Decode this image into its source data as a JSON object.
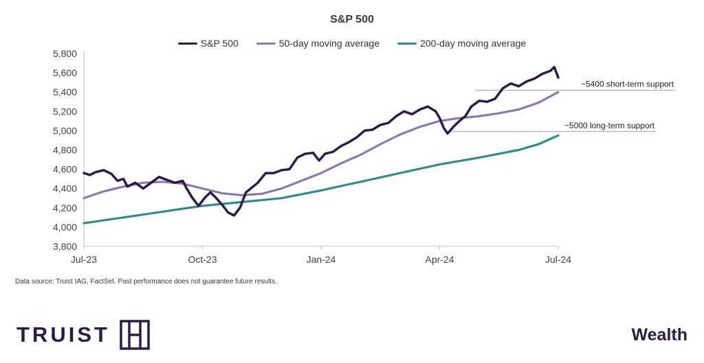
{
  "chart_data": {
    "type": "line",
    "title": "S&P 500",
    "y_ticks": [
      "5,800",
      "5,600",
      "5,400",
      "5,200",
      "5,000",
      "4,800",
      "4,600",
      "4,400",
      "4,200",
      "4,000",
      "3,800"
    ],
    "ylim": [
      3800,
      5800
    ],
    "x_ticks": [
      "Jul-23",
      "Oct-23",
      "Jan-24",
      "Apr-24",
      "Jul-24"
    ],
    "x_months": [
      0,
      3,
      6,
      9,
      12
    ],
    "xlim": [
      0,
      12
    ],
    "legend_position": "top-center",
    "series": [
      {
        "name": "S&P 500",
        "color": "#2e1a47",
        "points": [
          [
            0,
            4560
          ],
          [
            0.15,
            4540
          ],
          [
            0.3,
            4570
          ],
          [
            0.5,
            4590
          ],
          [
            0.7,
            4550
          ],
          [
            0.85,
            4480
          ],
          [
            1.0,
            4500
          ],
          [
            1.1,
            4420
          ],
          [
            1.3,
            4460
          ],
          [
            1.5,
            4400
          ],
          [
            1.7,
            4460
          ],
          [
            1.9,
            4520
          ],
          [
            2.1,
            4490
          ],
          [
            2.3,
            4460
          ],
          [
            2.5,
            4480
          ],
          [
            2.6,
            4400
          ],
          [
            2.75,
            4300
          ],
          [
            2.9,
            4220
          ],
          [
            3.05,
            4300
          ],
          [
            3.2,
            4360
          ],
          [
            3.35,
            4300
          ],
          [
            3.5,
            4230
          ],
          [
            3.65,
            4150
          ],
          [
            3.8,
            4120
          ],
          [
            3.95,
            4200
          ],
          [
            4.1,
            4360
          ],
          [
            4.25,
            4410
          ],
          [
            4.4,
            4460
          ],
          [
            4.6,
            4560
          ],
          [
            4.8,
            4560
          ],
          [
            5.0,
            4590
          ],
          [
            5.2,
            4600
          ],
          [
            5.4,
            4720
          ],
          [
            5.6,
            4760
          ],
          [
            5.8,
            4770
          ],
          [
            5.95,
            4690
          ],
          [
            6.1,
            4760
          ],
          [
            6.3,
            4780
          ],
          [
            6.5,
            4840
          ],
          [
            6.7,
            4880
          ],
          [
            6.9,
            4930
          ],
          [
            7.1,
            5000
          ],
          [
            7.3,
            5010
          ],
          [
            7.5,
            5060
          ],
          [
            7.7,
            5080
          ],
          [
            7.9,
            5150
          ],
          [
            8.1,
            5200
          ],
          [
            8.3,
            5170
          ],
          [
            8.5,
            5220
          ],
          [
            8.7,
            5250
          ],
          [
            8.9,
            5200
          ],
          [
            9.0,
            5130
          ],
          [
            9.1,
            5030
          ],
          [
            9.2,
            4970
          ],
          [
            9.35,
            5040
          ],
          [
            9.5,
            5100
          ],
          [
            9.65,
            5150
          ],
          [
            9.8,
            5250
          ],
          [
            10.0,
            5310
          ],
          [
            10.2,
            5300
          ],
          [
            10.4,
            5330
          ],
          [
            10.6,
            5440
          ],
          [
            10.8,
            5490
          ],
          [
            11.0,
            5460
          ],
          [
            11.2,
            5510
          ],
          [
            11.4,
            5540
          ],
          [
            11.6,
            5590
          ],
          [
            11.8,
            5620
          ],
          [
            11.9,
            5660
          ],
          [
            12.0,
            5550
          ]
        ]
      },
      {
        "name": "50-day moving average",
        "color": "#8b78ad",
        "points": [
          [
            0,
            4300
          ],
          [
            0.5,
            4370
          ],
          [
            1.0,
            4420
          ],
          [
            1.5,
            4460
          ],
          [
            2.0,
            4470
          ],
          [
            2.5,
            4450
          ],
          [
            3.0,
            4400
          ],
          [
            3.5,
            4350
          ],
          [
            4.0,
            4330
          ],
          [
            4.5,
            4345
          ],
          [
            5.0,
            4400
          ],
          [
            5.5,
            4480
          ],
          [
            6.0,
            4560
          ],
          [
            6.5,
            4660
          ],
          [
            7.0,
            4750
          ],
          [
            7.5,
            4860
          ],
          [
            8.0,
            4960
          ],
          [
            8.5,
            5040
          ],
          [
            9.0,
            5100
          ],
          [
            9.5,
            5130
          ],
          [
            10.0,
            5150
          ],
          [
            10.5,
            5180
          ],
          [
            11.0,
            5220
          ],
          [
            11.5,
            5290
          ],
          [
            12.0,
            5400
          ]
        ]
      },
      {
        "name": "200-day moving average",
        "color": "#2f8c8a",
        "points": [
          [
            0,
            4040
          ],
          [
            1.0,
            4100
          ],
          [
            2.0,
            4160
          ],
          [
            3.0,
            4220
          ],
          [
            4.0,
            4260
          ],
          [
            5.0,
            4300
          ],
          [
            6.0,
            4380
          ],
          [
            7.0,
            4470
          ],
          [
            8.0,
            4560
          ],
          [
            9.0,
            4650
          ],
          [
            10.0,
            4720
          ],
          [
            11.0,
            4800
          ],
          [
            11.5,
            4860
          ],
          [
            12.0,
            4950
          ]
        ]
      }
    ],
    "annotations": [
      {
        "text": "~5400 short-term support",
        "y": 5420,
        "x_start": 9.9
      },
      {
        "text": "~5000 long-term support",
        "y": 4990,
        "x_start": 9.2
      }
    ]
  },
  "footer": {
    "source": "Data source: Truist IAG, FactSet. Past performance does not guarantee future results.",
    "brand": "TRUIST",
    "wealth": "Wealth"
  }
}
